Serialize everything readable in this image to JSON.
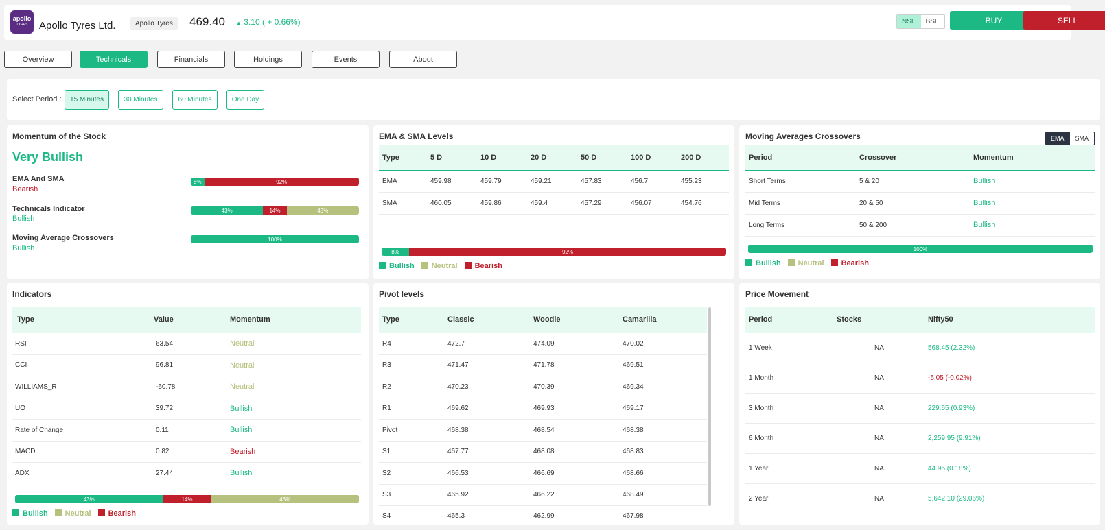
{
  "header": {
    "logo_text": "apollo",
    "logo_sub": "TYRES",
    "company": "Apollo Tyres Ltd.",
    "tag": "Apollo Tyres",
    "price": "469.40",
    "change": "3.10 ( + 0.66%)",
    "exchanges": [
      "NSE",
      "BSE"
    ],
    "buy": "BUY",
    "sell": "SELL"
  },
  "tabs": [
    "Overview",
    "Technicals",
    "Financials",
    "Holdings",
    "Events",
    "About"
  ],
  "period": {
    "label": "Select Period :",
    "options": [
      "15 Minutes",
      "30 Minutes",
      "60 Minutes",
      "One Day"
    ]
  },
  "momentum": {
    "title": "Momentum of the Stock",
    "overall": "Very Bullish",
    "rows": [
      {
        "label": "EMA And SMA",
        "status": "Bearish",
        "bars": [
          {
            "v": "8%"
          },
          {
            "v": "92%"
          }
        ]
      },
      {
        "label": "Technicals Indicator",
        "status": "Bullish",
        "bars": [
          {
            "v": "43%"
          },
          {
            "v": "14%"
          },
          {
            "v": "43%"
          }
        ]
      },
      {
        "label": "Moving Average Crossovers",
        "status": "Bullish",
        "bars": [
          {
            "v": "100%"
          }
        ]
      }
    ]
  },
  "ema_sma": {
    "title": "EMA & SMA Levels",
    "headers": [
      "Type",
      "5 D",
      "10 D",
      "20 D",
      "50 D",
      "100 D",
      "200 D"
    ],
    "rows": [
      [
        "EMA",
        "459.98",
        "459.79",
        "459.21",
        "457.83",
        "456.7",
        "455.23"
      ],
      [
        "SMA",
        "460.05",
        "459.86",
        "459.4",
        "457.29",
        "456.07",
        "454.76"
      ]
    ],
    "bar": [
      "8%",
      "92%"
    ]
  },
  "legend": {
    "bullish": "Bullish",
    "neutral": "Neutral",
    "bearish": "Bearish"
  },
  "mac": {
    "title": "Moving Averages Crossovers",
    "toggle": [
      "EMA",
      "SMA"
    ],
    "headers": [
      "Period",
      "Crossover",
      "Momentum"
    ],
    "rows": [
      [
        "Short Terms",
        "5 & 20",
        "Bullish"
      ],
      [
        "Mid Terms",
        "20 & 50",
        "Bullish"
      ],
      [
        "Long Terms",
        "50 & 200",
        "Bullish"
      ]
    ],
    "bar": "100%"
  },
  "indicators": {
    "title": "Indicators",
    "headers": [
      "Type",
      "Value",
      "Momentum"
    ],
    "rows": [
      [
        "RSI",
        "63.54",
        "Neutral"
      ],
      [
        "CCI",
        "96.81",
        "Neutral"
      ],
      [
        "WILLIAMS_R",
        "-60.78",
        "Neutral"
      ],
      [
        "UO",
        "39.72",
        "Bullish"
      ],
      [
        "Rate of Change",
        "0.11",
        "Bullish"
      ],
      [
        "MACD",
        "0.82",
        "Bearish"
      ],
      [
        "ADX",
        "27.44",
        "Bullish"
      ]
    ],
    "bar": [
      "43%",
      "14%",
      "43%"
    ]
  },
  "pivot": {
    "title": "Pivot levels",
    "headers": [
      "Type",
      "Classic",
      "Woodie",
      "Camarilla"
    ],
    "rows": [
      [
        "R4",
        "472.7",
        "474.09",
        "470.02"
      ],
      [
        "R3",
        "471.47",
        "471.78",
        "469.51"
      ],
      [
        "R2",
        "470.23",
        "470.39",
        "469.34"
      ],
      [
        "R1",
        "469.62",
        "469.93",
        "469.17"
      ],
      [
        "Pivot",
        "468.38",
        "468.54",
        "468.38"
      ],
      [
        "S1",
        "467.77",
        "468.08",
        "468.83"
      ],
      [
        "S2",
        "466.53",
        "466.69",
        "468.66"
      ],
      [
        "S3",
        "465.92",
        "466.22",
        "468.49"
      ],
      [
        "S4",
        "465.3",
        "462.99",
        "467.98"
      ]
    ]
  },
  "price_movement": {
    "title": "Price Movement",
    "headers": [
      "Period",
      "Stocks",
      "Nifty50"
    ],
    "rows": [
      [
        "1 Week",
        "NA",
        "568.45 (2.32%)"
      ],
      [
        "1 Month",
        "NA",
        "-5.05 (-0.02%)"
      ],
      [
        "3 Month",
        "NA",
        "229.65 (0.93%)"
      ],
      [
        "6 Month",
        "NA",
        "2,259.95 (9.91%)"
      ],
      [
        "1 Year",
        "NA",
        "44.95 (0.18%)"
      ],
      [
        "2 Year",
        "NA",
        "5,642.10 (29.06%)"
      ]
    ]
  },
  "colors": {
    "green": "#1db985",
    "red": "#c0202c",
    "olive": "#b6c17e"
  }
}
